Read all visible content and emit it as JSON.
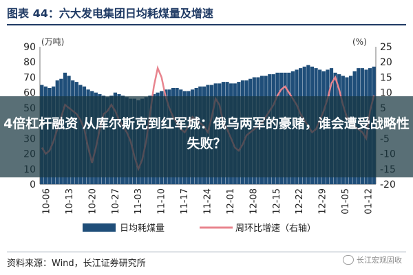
{
  "figure": {
    "title": "图表 44：六大发电集团日均耗煤量及增速",
    "source": "资料来源：Wind，长江证券研究所",
    "watermark": "长江宏观固收"
  },
  "overlay": {
    "headline": "4倍杠杆融资 从库尔斯克到红军城：俄乌两军的豪赌，谁会遭受战略性失败？"
  },
  "colors": {
    "bar": "#1f4e79",
    "line": "#e8848e",
    "title": "#1f3a64"
  },
  "chart_data": {
    "type": "bar",
    "left_unit": "(万吨)",
    "right_unit": "(%)",
    "left_ticks": [
      "90",
      "80",
      "70",
      "60",
      "50",
      "40",
      "30",
      "20",
      "10",
      "0"
    ],
    "right_ticks": [
      "25",
      "20",
      "15",
      "10",
      "5",
      "0",
      "-5",
      "-10",
      "-15",
      "-20"
    ],
    "ylim_left": [
      0,
      90
    ],
    "ylim_right": [
      -20,
      25
    ],
    "x_tick_labels": [
      "10-06",
      "10-13",
      "10-20",
      "10-27",
      "11-03",
      "11-10",
      "11-17",
      "11-24",
      "12-01",
      "12-08",
      "12-15",
      "12-22",
      "12-29",
      "01-05",
      "01-12"
    ],
    "legend": [
      "日均耗煤量",
      "周环比增速（右轴）"
    ],
    "series": [
      {
        "name": "日均耗煤量",
        "axis": "left",
        "values": [
          65,
          64,
          63,
          64,
          68,
          69,
          73,
          71,
          68,
          67,
          65,
          64,
          62,
          61,
          60,
          59,
          58,
          57,
          58,
          60,
          59,
          58,
          57,
          56,
          56,
          55,
          56,
          57,
          58,
          59,
          60,
          61,
          62,
          62,
          63,
          63,
          62,
          61,
          61,
          62,
          63,
          64,
          64,
          65,
          65,
          66,
          66,
          67,
          67,
          66,
          66,
          67,
          68,
          68,
          69,
          70,
          70,
          71,
          71,
          72,
          72,
          73,
          73,
          73,
          73,
          74,
          75,
          76,
          77,
          78,
          77,
          76,
          75,
          74,
          75,
          76,
          73,
          72,
          71,
          70,
          71,
          74,
          76,
          76,
          75,
          76,
          77
        ]
      },
      {
        "name": "周环比增速（右轴）",
        "axis": "right",
        "values": [
          -8,
          -10,
          -9,
          -6,
          -2,
          2,
          6,
          5,
          4,
          3,
          1,
          -2,
          -8,
          -13,
          -8,
          -2,
          3,
          4,
          6,
          4,
          1,
          -1,
          -3,
          -6,
          -11,
          -15,
          -12,
          -6,
          3,
          12,
          18,
          15,
          9,
          5,
          2,
          0,
          -2,
          -3,
          -1,
          2,
          1,
          0,
          -1,
          -3,
          2,
          8,
          6,
          0,
          -2,
          -5,
          -8,
          -9,
          -7,
          -4,
          -3,
          -2,
          -1,
          0,
          2,
          4,
          6,
          9,
          11,
          12,
          10,
          8,
          6,
          3,
          1,
          -1,
          -3,
          -2,
          1,
          4,
          8,
          13,
          15,
          11,
          6,
          2,
          0,
          -1,
          -2,
          -3,
          -5,
          4,
          9
        ]
      }
    ]
  }
}
